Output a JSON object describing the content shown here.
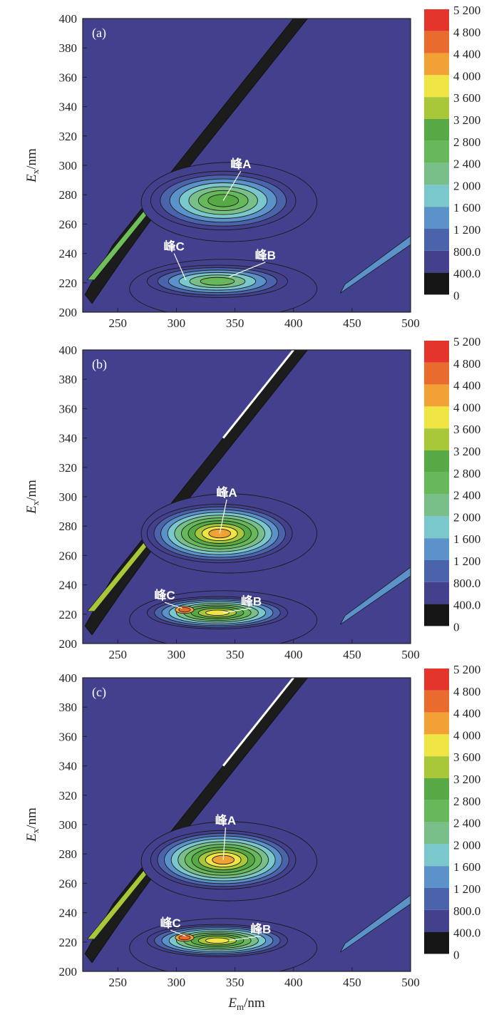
{
  "chart_data": [
    {
      "type": "heatmap",
      "panel_label": "(a)",
      "xlabel": "",
      "ylabel": "Ex/nm",
      "xlim": [
        220,
        500
      ],
      "ylim": [
        200,
        400
      ],
      "xticks": [
        250,
        300,
        350,
        400,
        450,
        500
      ],
      "yticks": [
        200,
        220,
        240,
        260,
        280,
        300,
        320,
        340,
        360,
        380,
        400
      ],
      "peaks": [
        {
          "label": "峰A",
          "text_at": [
            355,
            298
          ],
          "point_at": [
            340,
            276
          ],
          "value": 2800
        },
        {
          "label": "峰B",
          "text_at": [
            376,
            236
          ],
          "point_at": [
            345,
            224
          ],
          "value": 2400
        },
        {
          "label": "峰C",
          "text_at": [
            298,
            242
          ],
          "point_at": [
            308,
            222
          ],
          "value": 2400
        }
      ],
      "colorbar": {
        "levels": [
          "0",
          "400.0",
          "800.0",
          "1 200",
          "1 600",
          "2 000",
          "2 400",
          "2 800",
          "3 200",
          "3 600",
          "4 000",
          "4 400",
          "4 800",
          "5 200"
        ],
        "colors": [
          "#161616",
          "#43408e",
          "#4a63aa",
          "#5b92c9",
          "#7ac7cc",
          "#79bf8a",
          "#66b85a",
          "#57a945",
          "#a8c83a",
          "#efe646",
          "#f2a134",
          "#e96c2e",
          "#e4352c"
        ]
      }
    },
    {
      "type": "heatmap",
      "panel_label": "(b)",
      "xlabel": "",
      "ylabel": "Ex/nm",
      "xlim": [
        220,
        500
      ],
      "ylim": [
        200,
        400
      ],
      "xticks": [
        250,
        300,
        350,
        400,
        450,
        500
      ],
      "yticks": [
        200,
        220,
        240,
        260,
        280,
        300,
        320,
        340,
        360,
        380,
        400
      ],
      "peaks": [
        {
          "label": "峰A",
          "text_at": [
            343,
            300
          ],
          "point_at": [
            337,
            275
          ],
          "value": 4000
        },
        {
          "label": "峰B",
          "text_at": [
            364,
            226
          ],
          "point_at": [
            340,
            221
          ],
          "value": 3600
        },
        {
          "label": "峰C",
          "text_at": [
            290,
            230
          ],
          "point_at": [
            305,
            224
          ],
          "value": 4000
        }
      ],
      "colorbar": {
        "levels": [
          "0",
          "400.0",
          "800.0",
          "1 200",
          "1 600",
          "2 000",
          "2 400",
          "2 800",
          "3 200",
          "3 600",
          "4 000",
          "4 400",
          "4 800",
          "5 200"
        ],
        "colors": [
          "#161616",
          "#43408e",
          "#4a63aa",
          "#5b92c9",
          "#7ac7cc",
          "#79bf8a",
          "#66b85a",
          "#57a945",
          "#a8c83a",
          "#efe646",
          "#f2a134",
          "#e96c2e",
          "#e4352c"
        ]
      }
    },
    {
      "type": "heatmap",
      "panel_label": "(c)",
      "xlabel": "Em/nm",
      "ylabel": "Ex/nm",
      "xlim": [
        220,
        500
      ],
      "ylim": [
        200,
        400
      ],
      "xticks": [
        250,
        300,
        350,
        400,
        450,
        500
      ],
      "yticks": [
        200,
        220,
        240,
        260,
        280,
        300,
        320,
        340,
        360,
        380,
        400
      ],
      "peaks": [
        {
          "label": "峰A",
          "text_at": [
            342,
            300
          ],
          "point_at": [
            340,
            276
          ],
          "value": 4000
        },
        {
          "label": "峰B",
          "text_at": [
            372,
            226
          ],
          "point_at": [
            345,
            221
          ],
          "value": 3600
        },
        {
          "label": "峰C",
          "text_at": [
            295,
            230
          ],
          "point_at": [
            308,
            224
          ],
          "value": 4000
        }
      ],
      "colorbar": {
        "levels": [
          "0",
          "400.0",
          "800.0",
          "1 200",
          "1 600",
          "2 000",
          "2 400",
          "2 800",
          "3 200",
          "3 600",
          "4 000",
          "4 400",
          "4 800",
          "5 200"
        ],
        "colors": [
          "#161616",
          "#43408e",
          "#4a63aa",
          "#5b92c9",
          "#7ac7cc",
          "#79bf8a",
          "#66b85a",
          "#57a945",
          "#a8c83a",
          "#efe646",
          "#f2a134",
          "#e96c2e",
          "#e4352c"
        ]
      }
    }
  ]
}
